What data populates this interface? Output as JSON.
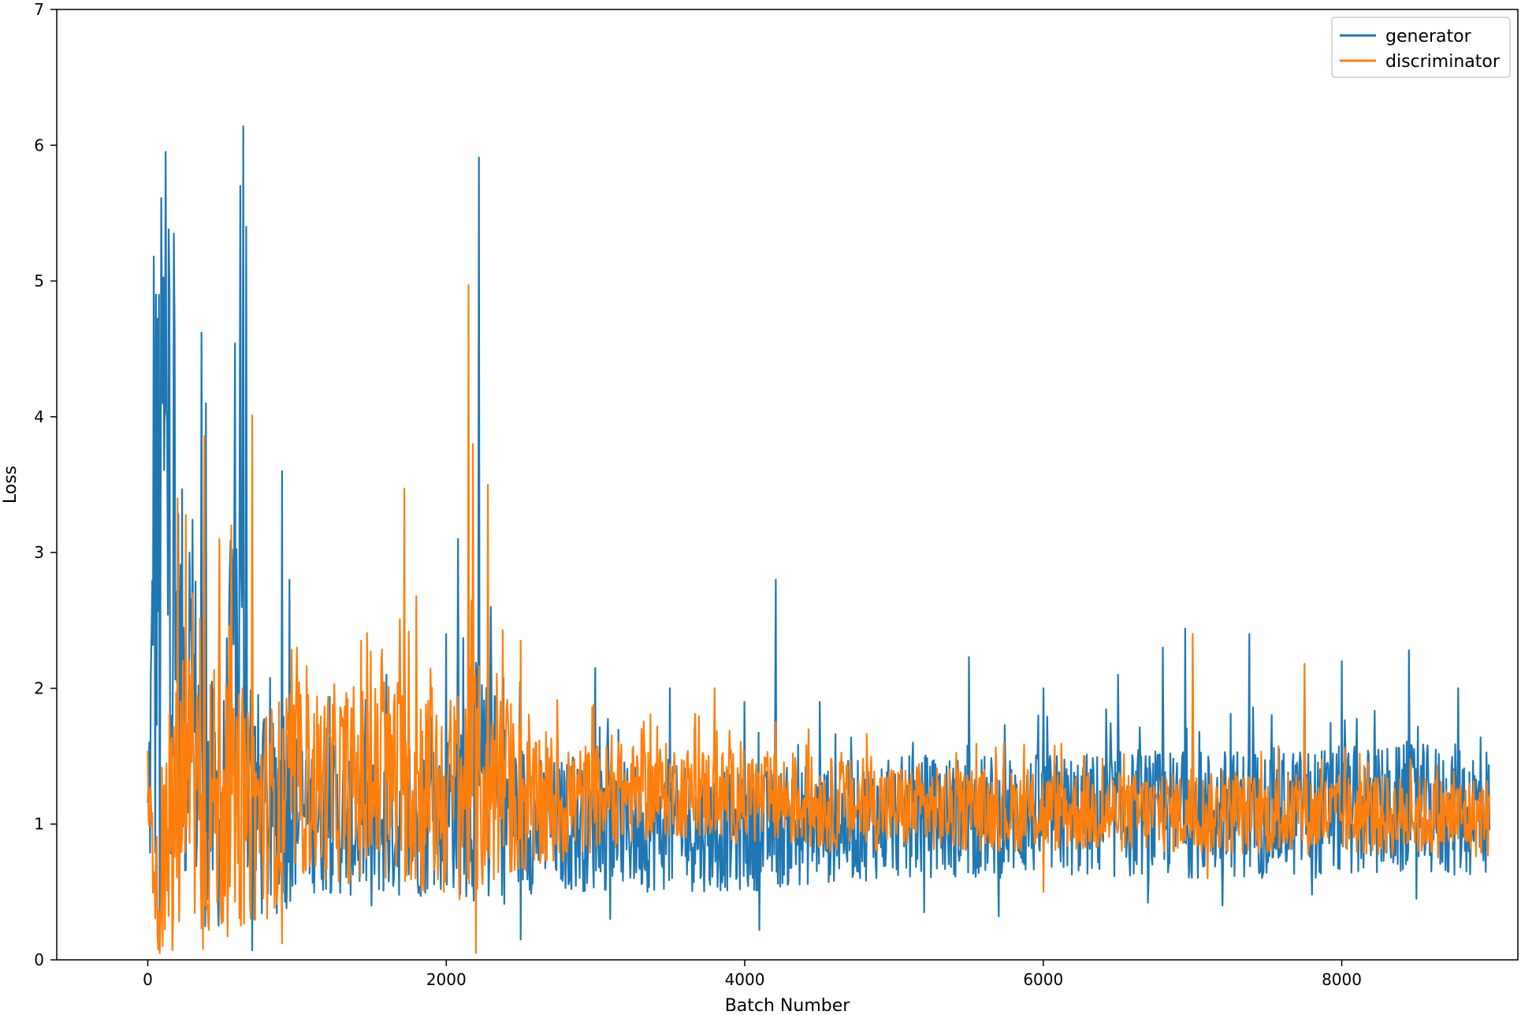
{
  "chart_data": {
    "type": "line",
    "title": "",
    "xlabel": "Batch Number",
    "ylabel": "Loss",
    "xlim": [
      -610,
      9180
    ],
    "ylim": [
      0,
      7
    ],
    "xticks": [
      0,
      2000,
      4000,
      6000,
      8000
    ],
    "xtick_labels": [
      "0",
      "2000",
      "4000",
      "6000",
      "8000"
    ],
    "yticks": [
      0,
      1,
      2,
      3,
      4,
      5,
      6,
      7
    ],
    "ytick_labels": [
      "0",
      "1",
      "2",
      "3",
      "4",
      "5",
      "6",
      "7"
    ],
    "grid": false,
    "legend_position": "top-right",
    "x_start": 0,
    "x_end": 8990,
    "series": [
      {
        "name": "generator",
        "color": "#1f77b4",
        "profile": [
          [
            0,
            1.0,
            0.5
          ],
          [
            50,
            2.5,
            2.2
          ],
          [
            100,
            3.6,
            2.4
          ],
          [
            200,
            2.0,
            1.6
          ],
          [
            300,
            1.8,
            1.4
          ],
          [
            400,
            1.2,
            1.0
          ],
          [
            500,
            1.0,
            0.8
          ],
          [
            600,
            2.2,
            2.0
          ],
          [
            700,
            1.2,
            1.0
          ],
          [
            800,
            1.0,
            0.7
          ],
          [
            900,
            1.2,
            0.9
          ],
          [
            1000,
            1.1,
            0.6
          ],
          [
            1400,
            1.0,
            0.55
          ],
          [
            1800,
            1.0,
            0.55
          ],
          [
            2000,
            1.1,
            0.6
          ],
          [
            2200,
            1.3,
            0.9
          ],
          [
            2400,
            1.1,
            0.7
          ],
          [
            2600,
            1.0,
            0.5
          ],
          [
            4000,
            0.95,
            0.45
          ],
          [
            5000,
            1.05,
            0.45
          ],
          [
            8990,
            1.1,
            0.5
          ]
        ],
        "peaks": [
          [
            40,
            5.18
          ],
          [
            55,
            4.9
          ],
          [
            75,
            4.9
          ],
          [
            100,
            4.1
          ],
          [
            120,
            5.95
          ],
          [
            140,
            5.38
          ],
          [
            175,
            5.35
          ],
          [
            200,
            2.5
          ],
          [
            280,
            3.0
          ],
          [
            360,
            4.62
          ],
          [
            390,
            4.1
          ],
          [
            580,
            3.2
          ],
          [
            620,
            5.7
          ],
          [
            640,
            6.14
          ],
          [
            660,
            5.4
          ],
          [
            700,
            4.0
          ],
          [
            900,
            3.6
          ],
          [
            950,
            2.8
          ],
          [
            1600,
            2.1
          ],
          [
            1720,
            2.6
          ],
          [
            2000,
            2.4
          ],
          [
            2080,
            3.1
          ],
          [
            2150,
            3.55
          ],
          [
            2220,
            5.91
          ],
          [
            2300,
            2.6
          ],
          [
            3000,
            2.15
          ],
          [
            3500,
            2.0
          ],
          [
            4000,
            1.9
          ],
          [
            4210,
            2.8
          ],
          [
            4500,
            1.9
          ],
          [
            5500,
            2.23
          ],
          [
            6000,
            2.0
          ],
          [
            6500,
            2.1
          ],
          [
            6800,
            2.3
          ],
          [
            6950,
            2.44
          ],
          [
            7380,
            2.4
          ],
          [
            7750,
            2.1
          ],
          [
            8000,
            2.2
          ],
          [
            8450,
            2.28
          ],
          [
            8780,
            2.0
          ]
        ],
        "dips": [
          [
            80,
            0.1
          ],
          [
            700,
            0.07
          ],
          [
            1500,
            0.4
          ],
          [
            2500,
            0.15
          ],
          [
            3100,
            0.3
          ],
          [
            4100,
            0.22
          ],
          [
            5200,
            0.35
          ],
          [
            5700,
            0.32
          ],
          [
            6700,
            0.42
          ],
          [
            7200,
            0.4
          ],
          [
            7800,
            0.48
          ],
          [
            8500,
            0.45
          ]
        ]
      },
      {
        "name": "discriminator",
        "color": "#ff7f0e",
        "profile": [
          [
            0,
            1.3,
            0.3
          ],
          [
            60,
            0.5,
            0.45
          ],
          [
            150,
            0.8,
            0.9
          ],
          [
            250,
            1.3,
            1.2
          ],
          [
            400,
            1.2,
            1.1
          ],
          [
            600,
            1.0,
            0.8
          ],
          [
            800,
            1.1,
            0.8
          ],
          [
            1000,
            1.3,
            0.7
          ],
          [
            1400,
            1.3,
            0.75
          ],
          [
            1800,
            1.3,
            0.85
          ],
          [
            2000,
            1.2,
            0.75
          ],
          [
            2200,
            1.3,
            0.9
          ],
          [
            2400,
            1.3,
            0.7
          ],
          [
            2600,
            1.1,
            0.5
          ],
          [
            3000,
            1.2,
            0.4
          ],
          [
            3500,
            1.25,
            0.35
          ],
          [
            4500,
            1.15,
            0.35
          ],
          [
            5500,
            1.1,
            0.3
          ],
          [
            8990,
            1.05,
            0.3
          ]
        ],
        "peaks": [
          [
            100,
            2.1
          ],
          [
            200,
            3.4
          ],
          [
            300,
            2.7
          ],
          [
            380,
            3.86
          ],
          [
            480,
            3.1
          ],
          [
            560,
            3.2
          ],
          [
            700,
            4.01
          ],
          [
            1000,
            2.3
          ],
          [
            1430,
            2.35
          ],
          [
            1720,
            3.47
          ],
          [
            1800,
            2.68
          ],
          [
            2150,
            4.97
          ],
          [
            2180,
            3.8
          ],
          [
            2280,
            3.5
          ],
          [
            2500,
            2.35
          ],
          [
            3800,
            2.0
          ],
          [
            7000,
            2.4
          ],
          [
            7750,
            2.18
          ]
        ],
        "dips": [
          [
            100,
            0.1
          ],
          [
            370,
            0.08
          ],
          [
            900,
            0.12
          ],
          [
            2200,
            0.05
          ],
          [
            6000,
            0.5
          ],
          [
            7100,
            0.6
          ]
        ]
      }
    ]
  }
}
